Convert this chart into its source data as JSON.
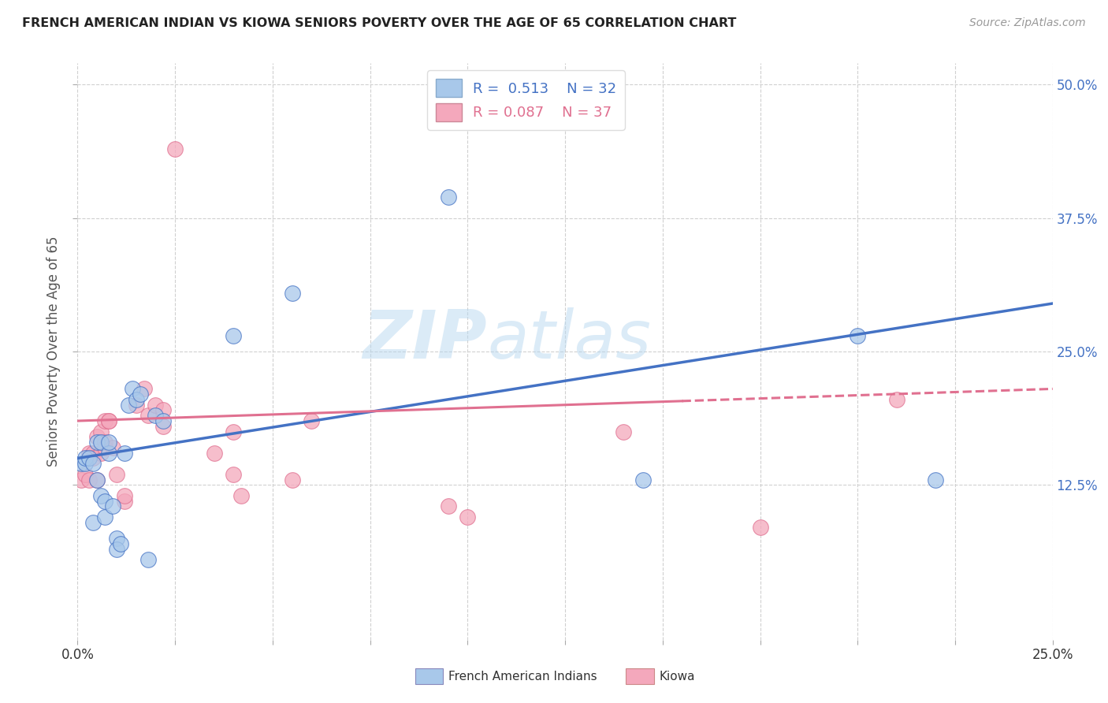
{
  "title": "FRENCH AMERICAN INDIAN VS KIOWA SENIORS POVERTY OVER THE AGE OF 65 CORRELATION CHART",
  "source": "Source: ZipAtlas.com",
  "ylabel_label": "Seniors Poverty Over the Age of 65",
  "legend_labels": [
    "French American Indians",
    "Kiowa"
  ],
  "R_blue": "0.513",
  "N_blue": "32",
  "R_pink": "0.087",
  "N_pink": "37",
  "blue_color": "#a8c8ea",
  "pink_color": "#f4a8bc",
  "blue_line_color": "#4472c4",
  "pink_line_color": "#e07090",
  "watermark_zip": "ZIP",
  "watermark_atlas": "atlas",
  "xlim": [
    0.0,
    0.25
  ],
  "ylim": [
    -0.02,
    0.52
  ],
  "x_tick_positions": [
    0.0,
    0.025,
    0.05,
    0.075,
    0.1,
    0.125,
    0.15,
    0.175,
    0.2,
    0.225,
    0.25
  ],
  "x_tick_labels": [
    "0.0%",
    "",
    "",
    "",
    "",
    "",
    "",
    "",
    "",
    "",
    "25.0%"
  ],
  "y_tick_positions": [
    0.125,
    0.25,
    0.375,
    0.5
  ],
  "y_tick_labels": [
    "12.5%",
    "25.0%",
    "37.5%",
    "50.0%"
  ],
  "blue_scatter_x": [
    0.001,
    0.002,
    0.002,
    0.003,
    0.004,
    0.004,
    0.005,
    0.005,
    0.006,
    0.006,
    0.007,
    0.007,
    0.008,
    0.008,
    0.009,
    0.01,
    0.01,
    0.011,
    0.012,
    0.013,
    0.014,
    0.015,
    0.016,
    0.018,
    0.02,
    0.022,
    0.04,
    0.055,
    0.095,
    0.145,
    0.2,
    0.22
  ],
  "blue_scatter_y": [
    0.145,
    0.145,
    0.15,
    0.15,
    0.145,
    0.09,
    0.13,
    0.165,
    0.115,
    0.165,
    0.11,
    0.095,
    0.155,
    0.165,
    0.105,
    0.075,
    0.065,
    0.07,
    0.155,
    0.2,
    0.215,
    0.205,
    0.21,
    0.055,
    0.19,
    0.185,
    0.265,
    0.305,
    0.395,
    0.13,
    0.265,
    0.13
  ],
  "pink_scatter_x": [
    0.001,
    0.002,
    0.003,
    0.003,
    0.004,
    0.004,
    0.005,
    0.005,
    0.006,
    0.006,
    0.007,
    0.007,
    0.007,
    0.008,
    0.008,
    0.009,
    0.01,
    0.012,
    0.012,
    0.015,
    0.017,
    0.018,
    0.02,
    0.022,
    0.022,
    0.025,
    0.035,
    0.04,
    0.04,
    0.042,
    0.055,
    0.06,
    0.095,
    0.1,
    0.14,
    0.175,
    0.21
  ],
  "pink_scatter_y": [
    0.13,
    0.135,
    0.155,
    0.13,
    0.155,
    0.15,
    0.13,
    0.17,
    0.175,
    0.155,
    0.165,
    0.16,
    0.185,
    0.185,
    0.185,
    0.16,
    0.135,
    0.11,
    0.115,
    0.2,
    0.215,
    0.19,
    0.2,
    0.18,
    0.195,
    0.44,
    0.155,
    0.135,
    0.175,
    0.115,
    0.13,
    0.185,
    0.105,
    0.095,
    0.175,
    0.085,
    0.205
  ],
  "blue_line_x": [
    0.0,
    0.25
  ],
  "blue_line_y": [
    0.15,
    0.295
  ],
  "pink_line_x": [
    0.0,
    0.25
  ],
  "pink_line_y": [
    0.185,
    0.215
  ],
  "pink_line_dashed_start": 0.155,
  "bg_color": "#ffffff",
  "grid_color": "#d0d0d0",
  "title_color": "#222222",
  "axis_label_color": "#555555",
  "right_tick_color": "#4472c4"
}
